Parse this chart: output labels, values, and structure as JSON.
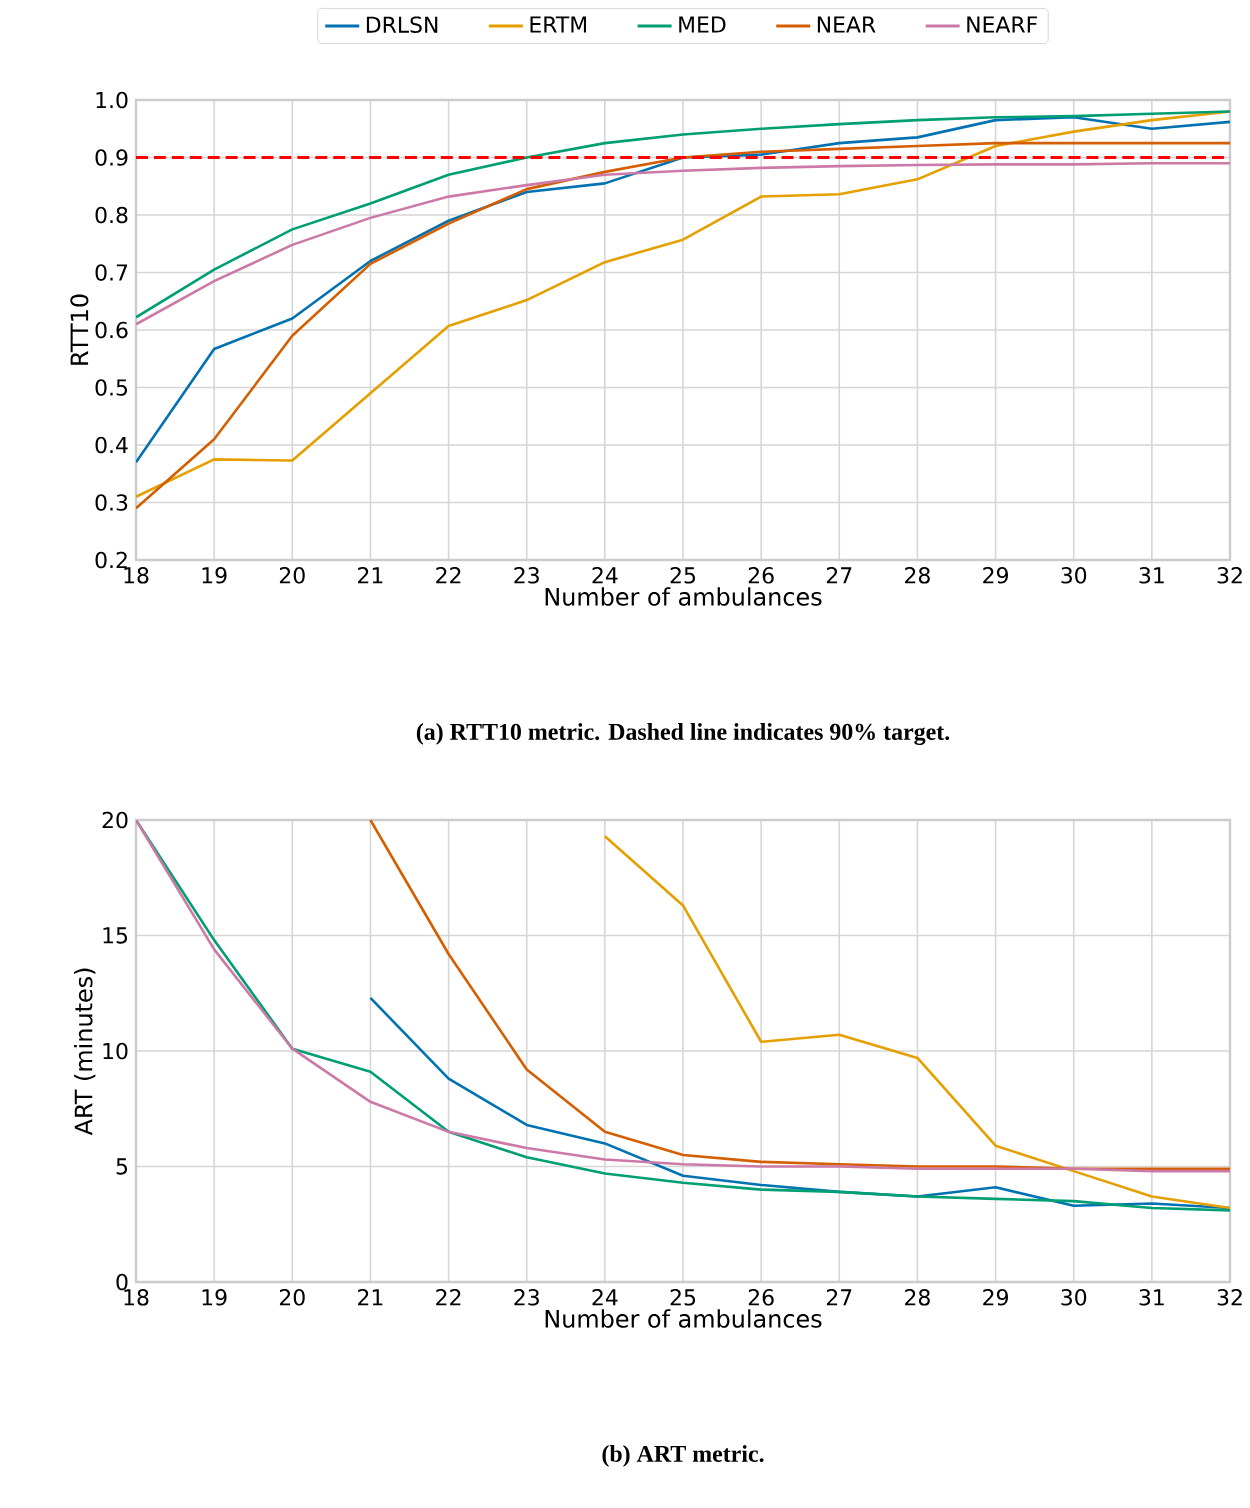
{
  "chart_data": [
    {
      "type": "line",
      "title": "(a) RTT10 metric. Dashed line indicates 90% target.",
      "xlabel": "Number of ambulances",
      "ylabel": "RTT10",
      "x": [
        18,
        19,
        20,
        21,
        22,
        23,
        24,
        25,
        26,
        27,
        28,
        29,
        30,
        31,
        32
      ],
      "xlim": [
        18,
        32
      ],
      "xticks": [
        18,
        19,
        20,
        21,
        22,
        23,
        24,
        25,
        26,
        27,
        28,
        29,
        30,
        31,
        32
      ],
      "ylim": [
        0.2,
        1.0
      ],
      "yticks": [
        {
          "value": 0.2,
          "label": "0.2"
        },
        {
          "value": 0.3,
          "label": "0.3"
        },
        {
          "value": 0.4,
          "label": "0.4"
        },
        {
          "value": 0.5,
          "label": "0.5"
        },
        {
          "value": 0.6,
          "label": "0.6"
        },
        {
          "value": 0.7,
          "label": "0.7"
        },
        {
          "value": 0.8,
          "label": "0.8"
        },
        {
          "value": 0.9,
          "label": "0.9"
        },
        {
          "value": 1.0,
          "label": "1.0"
        }
      ],
      "grid": true,
      "legend": "top",
      "ref_lines": [
        {
          "axis": "y",
          "value": 0.9,
          "color": "#ff0000",
          "line_style": "dashed"
        }
      ],
      "series": [
        {
          "name": "DRLSN",
          "color": "#0072b2",
          "values": [
            0.37,
            0.567,
            0.62,
            0.72,
            0.79,
            0.84,
            0.855,
            0.9,
            0.905,
            0.925,
            0.935,
            0.965,
            0.97,
            0.95,
            0.962
          ]
        },
        {
          "name": "ERTM",
          "color": "#e69f00",
          "values": [
            0.31,
            0.375,
            0.373,
            0.49,
            0.607,
            0.652,
            0.718,
            0.757,
            0.832,
            0.836,
            0.862,
            0.92,
            0.945,
            0.965,
            0.98
          ]
        },
        {
          "name": "MED",
          "color": "#009e73",
          "values": [
            0.622,
            0.705,
            0.775,
            0.82,
            0.87,
            0.9,
            0.925,
            0.94,
            0.95,
            0.958,
            0.965,
            0.97,
            0.972,
            0.976,
            0.98
          ]
        },
        {
          "name": "NEAR",
          "color": "#d55e00",
          "values": [
            0.29,
            0.41,
            0.59,
            0.715,
            0.785,
            0.845,
            0.875,
            0.9,
            0.91,
            0.915,
            0.92,
            0.925,
            0.925,
            0.925,
            0.925
          ]
        },
        {
          "name": "NEARF",
          "color": "#cc79a7",
          "values": [
            0.61,
            0.685,
            0.748,
            0.795,
            0.832,
            0.852,
            0.87,
            0.877,
            0.882,
            0.885,
            0.887,
            0.888,
            0.888,
            0.89,
            0.89
          ]
        }
      ]
    },
    {
      "type": "line",
      "title": "(b) ART metric.",
      "xlabel": "Number of ambulances",
      "ylabel": "ART (minutes)",
      "x": [
        18,
        19,
        20,
        21,
        22,
        23,
        24,
        25,
        26,
        27,
        28,
        29,
        30,
        31,
        32
      ],
      "xlim": [
        18,
        32
      ],
      "xticks": [
        18,
        19,
        20,
        21,
        22,
        23,
        24,
        25,
        26,
        27,
        28,
        29,
        30,
        31,
        32
      ],
      "ylim": [
        0,
        20
      ],
      "yticks": [
        0,
        5,
        10,
        15,
        20
      ],
      "grid": true,
      "series": [
        {
          "color": "#0072b2",
          "values": [
            null,
            null,
            null,
            12.3,
            8.8,
            6.8,
            6.0,
            4.6,
            4.2,
            3.9,
            3.7,
            4.1,
            3.3,
            3.4,
            3.2
          ]
        },
        {
          "color": "#e69f00",
          "values": [
            null,
            null,
            null,
            null,
            null,
            null,
            19.3,
            16.3,
            10.4,
            10.7,
            9.7,
            5.9,
            4.8,
            3.7,
            3.2
          ]
        },
        {
          "color": "#009e73",
          "values": [
            20,
            14.8,
            10.1,
            9.1,
            6.5,
            5.4,
            4.7,
            4.3,
            4.0,
            3.9,
            3.7,
            3.6,
            3.5,
            3.2,
            3.1
          ]
        },
        {
          "color": "#d55e00",
          "values": [
            null,
            null,
            null,
            20,
            14.2,
            9.2,
            6.5,
            5.5,
            5.2,
            5.1,
            5.0,
            5.0,
            4.9,
            4.9,
            4.9
          ]
        },
        {
          "color": "#cc79a7",
          "values": [
            20,
            14.4,
            10.1,
            7.8,
            6.5,
            5.8,
            5.3,
            5.1,
            5.0,
            5.0,
            4.9,
            4.9,
            4.9,
            4.8,
            4.8
          ]
        }
      ]
    }
  ]
}
